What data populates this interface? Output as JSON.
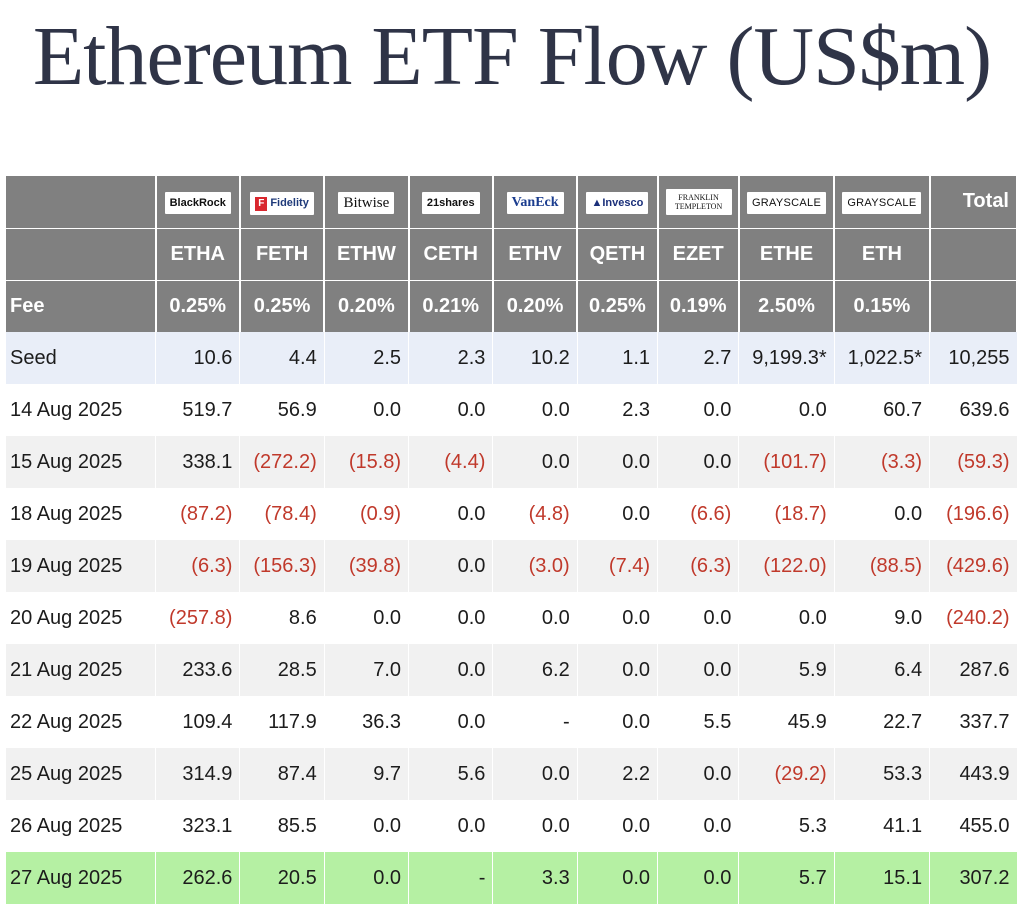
{
  "title": "Ethereum ETF Flow (US$m)",
  "colors": {
    "header_bg": "#808080",
    "negative": "#c0392b",
    "seed_bg": "#e9eef8",
    "latest_bg": "#b5f0a3"
  },
  "columns": [
    {
      "issuer": "BlackRock",
      "ticker": "ETHA",
      "fee": "0.25%"
    },
    {
      "issuer": "Fidelity",
      "ticker": "FETH",
      "fee": "0.25%"
    },
    {
      "issuer": "Bitwise",
      "ticker": "ETHW",
      "fee": "0.20%"
    },
    {
      "issuer": "21shares",
      "ticker": "CETH",
      "fee": "0.21%"
    },
    {
      "issuer": "VanEck",
      "ticker": "ETHV",
      "fee": "0.20%"
    },
    {
      "issuer": "Invesco",
      "ticker": "QETH",
      "fee": "0.25%"
    },
    {
      "issuer": "FRANKLIN TEMPLETON",
      "ticker": "EZET",
      "fee": "0.19%"
    },
    {
      "issuer": "GRAYSCALE",
      "ticker": "ETHE",
      "fee": "2.50%"
    },
    {
      "issuer": "GRAYSCALE",
      "ticker": "ETH",
      "fee": "0.15%"
    }
  ],
  "total_label": "Total",
  "fee_label": "Fee",
  "rows": [
    {
      "label": "Seed",
      "values": [
        "10.6",
        "4.4",
        "2.5",
        "2.3",
        "10.2",
        "1.1",
        "2.7",
        "9,199.3*",
        "1,022.5*"
      ],
      "total": "10,255"
    },
    {
      "label": "14 Aug 2025",
      "values": [
        "519.7",
        "56.9",
        "0.0",
        "0.0",
        "0.0",
        "2.3",
        "0.0",
        "0.0",
        "60.7"
      ],
      "total": "639.6"
    },
    {
      "label": "15 Aug 2025",
      "values": [
        "338.1",
        "(272.2)",
        "(15.8)",
        "(4.4)",
        "0.0",
        "0.0",
        "0.0",
        "(101.7)",
        "(3.3)"
      ],
      "total": "(59.3)"
    },
    {
      "label": "18 Aug 2025",
      "values": [
        "(87.2)",
        "(78.4)",
        "(0.9)",
        "0.0",
        "(4.8)",
        "0.0",
        "(6.6)",
        "(18.7)",
        "0.0"
      ],
      "total": "(196.6)"
    },
    {
      "label": "19 Aug 2025",
      "values": [
        "(6.3)",
        "(156.3)",
        "(39.8)",
        "0.0",
        "(3.0)",
        "(7.4)",
        "(6.3)",
        "(122.0)",
        "(88.5)"
      ],
      "total": "(429.6)"
    },
    {
      "label": "20 Aug 2025",
      "values": [
        "(257.8)",
        "8.6",
        "0.0",
        "0.0",
        "0.0",
        "0.0",
        "0.0",
        "0.0",
        "9.0"
      ],
      "total": "(240.2)"
    },
    {
      "label": "21 Aug 2025",
      "values": [
        "233.6",
        "28.5",
        "7.0",
        "0.0",
        "6.2",
        "0.0",
        "0.0",
        "5.9",
        "6.4"
      ],
      "total": "287.6"
    },
    {
      "label": "22 Aug 2025",
      "values": [
        "109.4",
        "117.9",
        "36.3",
        "0.0",
        "-",
        "0.0",
        "5.5",
        "45.9",
        "22.7"
      ],
      "total": "337.7"
    },
    {
      "label": "25 Aug 2025",
      "values": [
        "314.9",
        "87.4",
        "9.7",
        "5.6",
        "0.0",
        "2.2",
        "0.0",
        "(29.2)",
        "53.3"
      ],
      "total": "443.9"
    },
    {
      "label": "26 Aug 2025",
      "values": [
        "323.1",
        "85.5",
        "0.0",
        "0.0",
        "0.0",
        "0.0",
        "0.0",
        "5.3",
        "41.1"
      ],
      "total": "455.0"
    },
    {
      "label": "27 Aug 2025",
      "values": [
        "262.6",
        "20.5",
        "0.0",
        "-",
        "3.3",
        "0.0",
        "0.0",
        "5.7",
        "15.1"
      ],
      "total": "307.2"
    }
  ]
}
